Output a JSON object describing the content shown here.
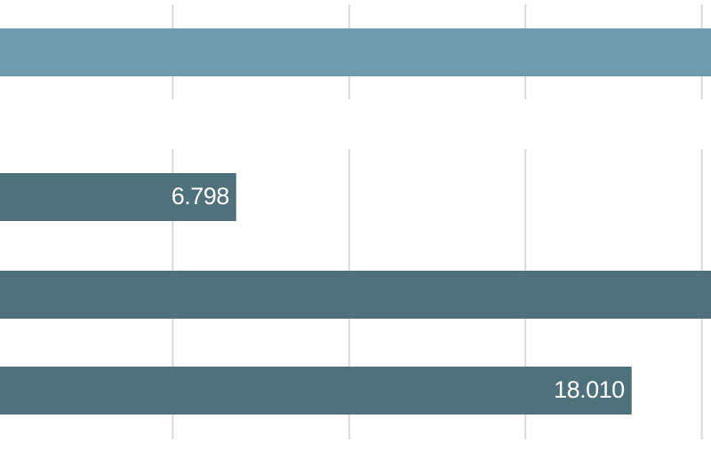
{
  "chart_data": {
    "type": "bar",
    "orientation": "horizontal",
    "values": [
      21,
      6.798,
      21,
      18.01
    ],
    "value_labels": [
      null,
      "6.798",
      null,
      "18.010"
    ],
    "colors": [
      "#6f9bab",
      "#4f717b",
      "#4f717b",
      "#4f717b"
    ],
    "xlim": [
      0,
      20.26
    ],
    "xticks": [
      5,
      10,
      15,
      20
    ],
    "grid": true
  }
}
